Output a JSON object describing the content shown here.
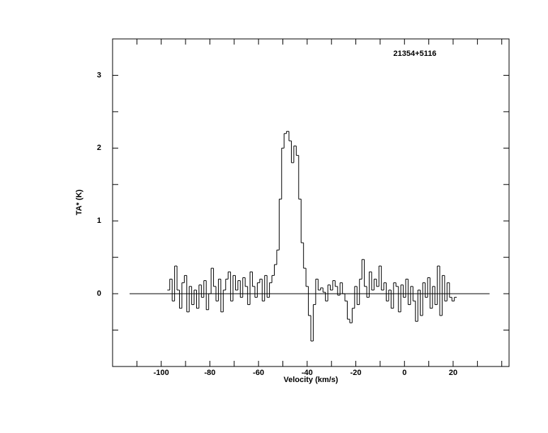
{
  "chart_data": {
    "type": "step",
    "title": "21354+5116",
    "x_label": "Velocity (km/s)",
    "y_label": "TA* (K)",
    "xlim": [
      -120,
      43
    ],
    "ylim": [
      -1,
      3.5
    ],
    "xticks": [
      -100,
      -80,
      -60,
      -40,
      -20,
      0,
      20
    ],
    "xminorticks": [
      -110,
      -90,
      -70,
      -50,
      -30,
      -10,
      10,
      30,
      40
    ],
    "yticks": [
      0,
      1,
      2,
      3
    ],
    "yminorticks": [
      -0.5,
      0.5,
      1.5,
      2.5
    ],
    "zero_line": [
      -113,
      35
    ],
    "color": "#000000",
    "x": [
      -97,
      -96,
      -95,
      -94,
      -93,
      -92,
      -91,
      -90,
      -89,
      -88,
      -87,
      -86,
      -85,
      -84,
      -83,
      -82,
      -81,
      -80,
      -79,
      -78,
      -77,
      -76,
      -75,
      -74,
      -73,
      -72,
      -71,
      -70,
      -69,
      -68,
      -67,
      -66,
      -65,
      -64,
      -63,
      -62,
      -61,
      -60,
      -59,
      -58,
      -57,
      -56,
      -55,
      -54,
      -53,
      -52,
      -51,
      -50,
      -49,
      -48,
      -47,
      -46,
      -45,
      -44,
      -43,
      -42,
      -41,
      -40,
      -39,
      -38,
      -37,
      -36,
      -35,
      -34,
      -33,
      -32,
      -31,
      -30,
      -29,
      -28,
      -27,
      -26,
      -25,
      -24,
      -23,
      -22,
      -21,
      -20,
      -19,
      -18,
      -17,
      -16,
      -15,
      -14,
      -13,
      -12,
      -11,
      -10,
      -9,
      -8,
      -7,
      -6,
      -5,
      -4,
      -3,
      -2,
      -1,
      0,
      1,
      2,
      3,
      4,
      5,
      6,
      7,
      8,
      9,
      10,
      11,
      12,
      13,
      14,
      15,
      16,
      17,
      18,
      19,
      20,
      21
    ],
    "values": [
      0.05,
      0.2,
      -0.1,
      0.38,
      0.05,
      -0.2,
      0.15,
      0.25,
      -0.25,
      0.1,
      -0.15,
      0.05,
      -0.2,
      0.12,
      -0.05,
      0.18,
      -0.22,
      0.0,
      0.35,
      0.1,
      -0.1,
      0.2,
      -0.25,
      0.05,
      0.2,
      0.3,
      -0.1,
      0.25,
      0.05,
      0.18,
      -0.05,
      0.22,
      0.1,
      -0.15,
      0.3,
      0.1,
      -0.05,
      0.15,
      0.2,
      -0.1,
      0.25,
      -0.05,
      0.15,
      0.25,
      0.4,
      0.6,
      1.3,
      2.0,
      2.2,
      2.23,
      2.1,
      1.8,
      2.03,
      1.9,
      1.3,
      0.7,
      0.35,
      0.1,
      -0.3,
      -0.65,
      -0.15,
      0.2,
      0.05,
      0.08,
      0.02,
      -0.1,
      0.12,
      0.05,
      0.18,
      0.1,
      -0.02,
      0.15,
      0.0,
      -0.1,
      -0.35,
      -0.4,
      -0.2,
      0.1,
      -0.15,
      0.2,
      0.47,
      0.1,
      -0.05,
      0.3,
      0.05,
      0.2,
      0.1,
      0.38,
      0.05,
      0.15,
      -0.1,
      0.05,
      -0.2,
      0.15,
      0.1,
      -0.25,
      0.12,
      -0.05,
      0.2,
      -0.15,
      0.1,
      -0.1,
      -0.38,
      0.05,
      -0.3,
      0.15,
      -0.05,
      0.22,
      -0.2,
      0.1,
      -0.15,
      0.38,
      -0.3,
      0.25,
      -0.1,
      0.15,
      -0.05,
      -0.1,
      -0.05
    ]
  }
}
